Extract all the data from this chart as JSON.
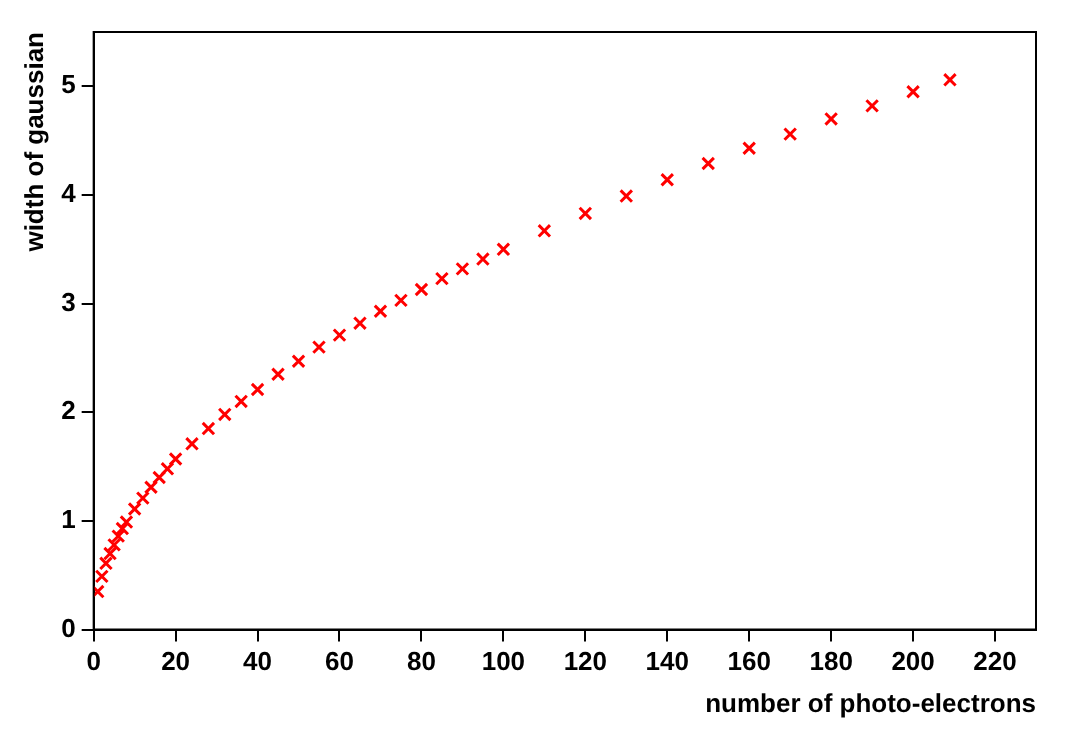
{
  "chart_data": {
    "type": "scatter",
    "xlabel": "number of photo-electrons",
    "ylabel": "width of gaussian",
    "marker": "cross",
    "grid": false,
    "xlim": [
      0,
      230
    ],
    "xticks": [
      0,
      20,
      40,
      60,
      80,
      100,
      120,
      140,
      160,
      180,
      200,
      220
    ],
    "ylim": [
      0,
      5.5
    ],
    "yticks": [
      0,
      1,
      2,
      3,
      4,
      5
    ],
    "series": [
      {
        "color": "#ff0000",
        "x": [
          1,
          2,
          3,
          4,
          5,
          6,
          7,
          8,
          10,
          12,
          14,
          16,
          18,
          20,
          24,
          28,
          32,
          36,
          40,
          45,
          50,
          55,
          60,
          65,
          70,
          75,
          80,
          85,
          90,
          95,
          100,
          110,
          120,
          130,
          140,
          150,
          160,
          170,
          180,
          190,
          200,
          209
        ],
        "values": [
          0.35,
          0.49,
          0.61,
          0.7,
          0.78,
          0.86,
          0.93,
          0.99,
          1.11,
          1.21,
          1.31,
          1.4,
          1.48,
          1.57,
          1.71,
          1.85,
          1.98,
          2.1,
          2.21,
          2.35,
          2.47,
          2.6,
          2.71,
          2.82,
          2.93,
          3.03,
          3.13,
          3.23,
          3.32,
          3.41,
          3.5,
          3.67,
          3.83,
          3.99,
          4.14,
          4.29,
          4.43,
          4.56,
          4.7,
          4.82,
          4.95,
          5.06
        ]
      }
    ]
  }
}
